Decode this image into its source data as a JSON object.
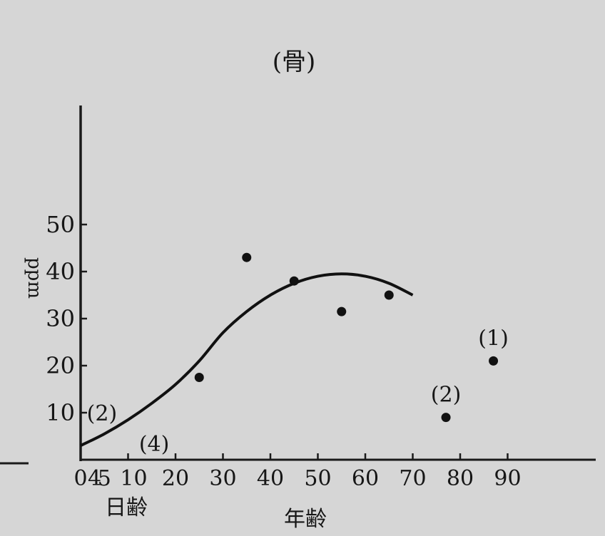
{
  "chart_data": {
    "type": "scatter",
    "title": "(骨)",
    "xlabel": "年齢",
    "xlabel_secondary": "日齢",
    "ylabel": "ppm",
    "x_ticks": [
      {
        "value": 0,
        "label": "0"
      },
      {
        "value": 4,
        "label": "4"
      },
      {
        "value": 5,
        "label": "5"
      },
      {
        "value": 10,
        "label": "10"
      },
      {
        "value": 20,
        "label": "20"
      },
      {
        "value": 30,
        "label": "30"
      },
      {
        "value": 40,
        "label": "40"
      },
      {
        "value": 50,
        "label": "50"
      },
      {
        "value": 60,
        "label": "60"
      },
      {
        "value": 70,
        "label": "70"
      },
      {
        "value": 80,
        "label": "80"
      },
      {
        "value": 90,
        "label": "90"
      }
    ],
    "y_ticks": [
      {
        "value": 10,
        "label": "10"
      },
      {
        "value": 20,
        "label": "20"
      },
      {
        "value": 30,
        "label": "30"
      },
      {
        "value": 40,
        "label": "40"
      },
      {
        "value": 50,
        "label": "50"
      }
    ],
    "xlim": [
      0,
      100
    ],
    "ylim": [
      0,
      77
    ],
    "grid": false,
    "points": [
      {
        "x": 25,
        "y": 17.5
      },
      {
        "x": 35,
        "y": 43
      },
      {
        "x": 45,
        "y": 38
      },
      {
        "x": 55,
        "y": 31.5
      },
      {
        "x": 65,
        "y": 35
      },
      {
        "x": 77,
        "y": 9
      },
      {
        "x": 87,
        "y": 21
      }
    ],
    "curve": [
      {
        "x": 0,
        "y": 3
      },
      {
        "x": 5,
        "y": 5.5
      },
      {
        "x": 10,
        "y": 8.5
      },
      {
        "x": 15,
        "y": 12
      },
      {
        "x": 20,
        "y": 16
      },
      {
        "x": 25,
        "y": 21
      },
      {
        "x": 30,
        "y": 27
      },
      {
        "x": 35,
        "y": 31.5
      },
      {
        "x": 40,
        "y": 35
      },
      {
        "x": 45,
        "y": 37.5
      },
      {
        "x": 50,
        "y": 39
      },
      {
        "x": 55,
        "y": 39.5
      },
      {
        "x": 60,
        "y": 39
      },
      {
        "x": 65,
        "y": 37.5
      },
      {
        "x": 70,
        "y": 35
      }
    ],
    "annotations": [
      {
        "text": "(2)",
        "x": 4.5,
        "y": 10
      },
      {
        "text": "(4)",
        "x": 15.5,
        "y": 3.5
      },
      {
        "text": "(2)",
        "x": 77,
        "y": 14
      },
      {
        "text": "(1)",
        "x": 87,
        "y": 26
      }
    ]
  }
}
